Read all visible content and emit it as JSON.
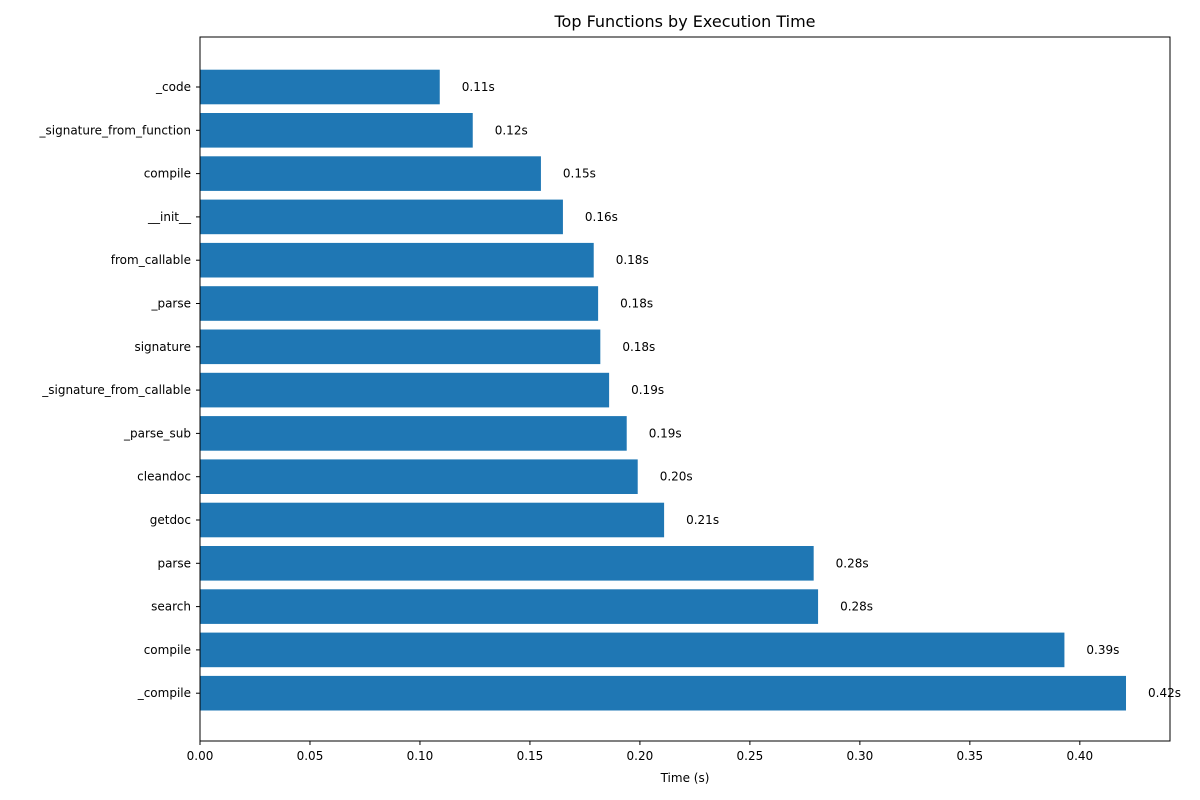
{
  "chart_data": {
    "type": "bar",
    "orientation": "horizontal",
    "title": "Top Functions by Execution Time",
    "xlabel": "Time (s)",
    "ylabel": "",
    "xlim": [
      0.0,
      0.441
    ],
    "xticks": [
      "0.00",
      "0.05",
      "0.10",
      "0.15",
      "0.20",
      "0.25",
      "0.30",
      "0.35",
      "0.40"
    ],
    "grid": false,
    "bar_color": "#1f77b4",
    "categories": [
      "_code",
      "_signature_from_function",
      "compile",
      "__init__",
      "from_callable",
      "_parse",
      "signature",
      "_signature_from_callable",
      "_parse_sub",
      "cleandoc",
      "getdoc",
      "parse",
      "search",
      "compile",
      "_compile"
    ],
    "values": [
      0.109,
      0.124,
      0.155,
      0.165,
      0.179,
      0.181,
      0.182,
      0.186,
      0.194,
      0.199,
      0.211,
      0.279,
      0.281,
      0.393,
      0.421
    ],
    "data_labels": [
      "0.11s",
      "0.12s",
      "0.15s",
      "0.16s",
      "0.18s",
      "0.18s",
      "0.18s",
      "0.19s",
      "0.19s",
      "0.20s",
      "0.21s",
      "0.28s",
      "0.28s",
      "0.39s",
      "0.42s"
    ]
  }
}
